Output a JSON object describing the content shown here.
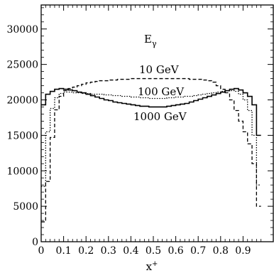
{
  "chart_data": {
    "type": "step-histogram",
    "xlabel": "x",
    "xlabel_sup": "+",
    "ylabel": "",
    "xlim": [
      0,
      1
    ],
    "ylim": [
      0,
      33500
    ],
    "x_ticks": [
      0,
      0.1,
      0.2,
      0.3,
      0.4,
      0.5,
      0.6,
      0.7,
      0.8,
      0.9
    ],
    "x_tick_labels": [
      "0",
      "0.1",
      "0.2",
      "0.3",
      "0.4",
      "0.5",
      "0.6",
      "0.7",
      "0.8",
      "0.9"
    ],
    "y_ticks": [
      0,
      5000,
      10000,
      15000,
      20000,
      25000,
      30000
    ],
    "y_tick_labels": [
      "0",
      "5000",
      "10000",
      "15000",
      "20000",
      "25000",
      "30000"
    ],
    "grid": false,
    "legend": "none",
    "annotations": {
      "energy_main": "E",
      "energy_sub": "γ",
      "label_10": "10 GeV",
      "label_100": "100 GeV",
      "label_1000": "1000 GeV"
    },
    "bin_width": 0.02,
    "series": [
      {
        "label_key": "label_1000",
        "style": "solid",
        "values": [
          19300,
          20800,
          21200,
          21500,
          21600,
          21500,
          21400,
          21300,
          21100,
          21000,
          20800,
          20600,
          20400,
          20200,
          20000,
          19900,
          19700,
          19600,
          19500,
          19400,
          19300,
          19200,
          19100,
          19100,
          19000,
          19000,
          19000,
          19000,
          19100,
          19200,
          19300,
          19400,
          19500,
          19700,
          19900,
          20100,
          20300,
          20500,
          20700,
          20900,
          21100,
          21300,
          21500,
          21600,
          21400,
          21000,
          20500,
          19300,
          15000
        ]
      },
      {
        "label_key": "label_100",
        "style": "dotted",
        "values": [
          7800,
          15500,
          18800,
          20300,
          20900,
          21100,
          21100,
          21000,
          21000,
          20900,
          20900,
          20800,
          20800,
          20800,
          20700,
          20700,
          20600,
          20600,
          20500,
          20500,
          20400,
          20400,
          20300,
          20300,
          20200,
          20200,
          20200,
          20200,
          20300,
          20300,
          20400,
          20400,
          20500,
          20500,
          20600,
          20700,
          20800,
          20900,
          21000,
          21100,
          21200,
          21300,
          21300,
          21200,
          20800,
          20000,
          18500,
          15000,
          8000
        ]
      },
      {
        "label_key": "label_10",
        "style": "dashed",
        "values": [
          2800,
          8500,
          14700,
          18600,
          20500,
          21300,
          21600,
          21800,
          22000,
          22200,
          22400,
          22500,
          22600,
          22700,
          22700,
          22800,
          22800,
          22900,
          22900,
          22900,
          23000,
          23000,
          23000,
          23000,
          23000,
          23000,
          23000,
          23000,
          23000,
          23000,
          23000,
          23000,
          23000,
          22900,
          22900,
          22900,
          22800,
          22700,
          22500,
          22000,
          21500,
          21000,
          20000,
          18500,
          17000,
          15500,
          13800,
          11000,
          5000
        ]
      }
    ]
  }
}
